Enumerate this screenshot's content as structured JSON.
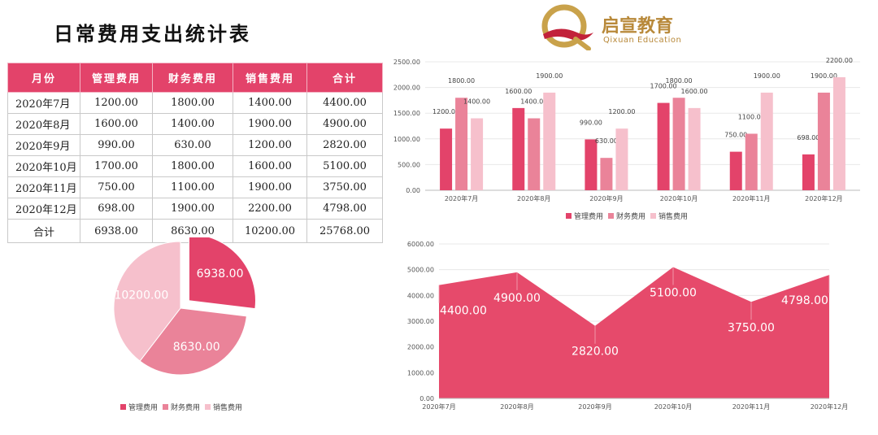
{
  "title": "日常费用支出统计表",
  "logo": {
    "brand": "启宣教育",
    "sub": "Qixuan Education"
  },
  "table": {
    "headers": [
      "月份",
      "管理费用",
      "财务费用",
      "销售费用",
      "合计"
    ],
    "rows": [
      [
        "2020年7月",
        "1200.00",
        "1800.00",
        "1400.00",
        "4400.00"
      ],
      [
        "2020年8月",
        "1600.00",
        "1400.00",
        "1900.00",
        "4900.00"
      ],
      [
        "2020年9月",
        "990.00",
        "630.00",
        "1200.00",
        "2820.00"
      ],
      [
        "2020年10月",
        "1700.00",
        "1800.00",
        "1600.00",
        "5100.00"
      ],
      [
        "2020年11月",
        "750.00",
        "1100.00",
        "1900.00",
        "3750.00"
      ],
      [
        "2020年12月",
        "698.00",
        "1900.00",
        "2200.00",
        "4798.00"
      ]
    ],
    "total_row": [
      "合计",
      "6938.00",
      "8630.00",
      "10200.00",
      "25768.00"
    ]
  },
  "colors": {
    "管理费用": "#e3436a",
    "财务费用": "#ea8399",
    "销售费用": "#f6c0cc",
    "area": "#e64a6b"
  },
  "chart_data": [
    {
      "type": "bar",
      "categories": [
        "2020年7月",
        "2020年8月",
        "2020年9月",
        "2020年10月",
        "2020年11月",
        "2020年12月"
      ],
      "series": [
        {
          "name": "管理费用",
          "values": [
            1200,
            1600,
            990,
            1700,
            750,
            698
          ],
          "labels": [
            "1200.00",
            "1600.00",
            "990.00",
            "1700.00",
            "750.00",
            "698.00"
          ]
        },
        {
          "name": "财务费用",
          "values": [
            1800,
            1400,
            630,
            1800,
            1100,
            1900
          ],
          "labels": [
            "1800.00",
            "1400.00",
            "630.00",
            "1800.00",
            "1100.00",
            "1900.00"
          ]
        },
        {
          "name": "销售费用",
          "values": [
            1400,
            1900,
            1200,
            1600,
            1900,
            2200
          ],
          "labels": [
            "1400.00",
            "1900.00",
            "1200.00",
            "1600.00",
            "1900.00",
            "2200.00"
          ]
        }
      ],
      "ylim": [
        0,
        2500
      ],
      "yticks": [
        "0.00",
        "500.00",
        "1000.00",
        "1500.00",
        "2000.00",
        "2500.00"
      ],
      "legend": "bottom"
    },
    {
      "type": "pie",
      "categories": [
        "管理费用",
        "财务费用",
        "销售费用"
      ],
      "values": [
        6938,
        8630,
        10200
      ],
      "labels": [
        "6938.00",
        "8630.00",
        "10200.00"
      ],
      "exploded": "管理费用",
      "legend": "bottom"
    },
    {
      "type": "area",
      "categories": [
        "2020年7月",
        "2020年8月",
        "2020年9月",
        "2020年10月",
        "2020年11月",
        "2020年12月"
      ],
      "values": [
        4400,
        4900,
        2820,
        5100,
        3750,
        4798
      ],
      "labels": [
        "4400.00",
        "4900.00",
        "2820.00",
        "5100.00",
        "3750.00",
        "4798.00"
      ],
      "ylim": [
        0,
        6000
      ],
      "yticks": [
        "0.00",
        "1000.00",
        "2000.00",
        "3000.00",
        "4000.00",
        "5000.00",
        "6000.00"
      ]
    }
  ]
}
